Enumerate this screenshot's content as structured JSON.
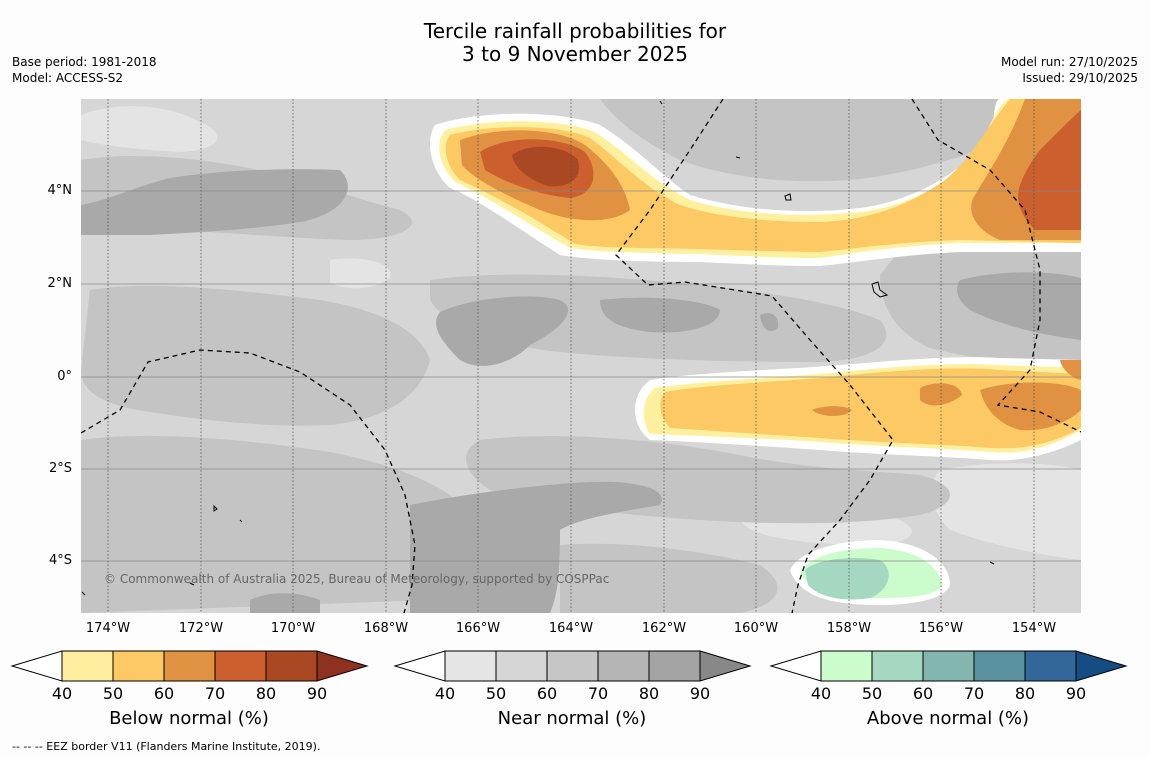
{
  "title": {
    "line1": "Tercile rainfall probabilities for",
    "line2": "3 to 9 November 2025"
  },
  "meta": {
    "base_period": "Base period: 1981-2018",
    "model": "Model: ACCESS-S2",
    "model_run": "Model run: 27/10/2025",
    "issued": "Issued: 29/10/2025"
  },
  "map": {
    "credit": "© Commonwealth of Australia 2025, Bureau of Meteorology, supported by COSPPac",
    "lat_labels": [
      "4°N",
      "2°N",
      "0°",
      "2°S",
      "4°S"
    ],
    "lon_labels": [
      "174°W",
      "172°W",
      "170°W",
      "168°W",
      "166°W",
      "164°W",
      "162°W",
      "160°W",
      "158°W",
      "156°W",
      "154°W"
    ]
  },
  "legend": {
    "ticks": [
      "40",
      "50",
      "60",
      "70",
      "80",
      "90"
    ],
    "below": {
      "title": "Below normal (%)",
      "colors": [
        "#ffee9f",
        "#fdc964",
        "#e09242",
        "#cb5f2e",
        "#ab4824",
        "#8f3120"
      ]
    },
    "near": {
      "title": "Near normal (%)",
      "colors": [
        "#e5e5e5",
        "#d6d6d6",
        "#c6c6c6",
        "#b4b4b4",
        "#a4a4a4",
        "#888888"
      ]
    },
    "above": {
      "title": "Above normal (%)",
      "colors": [
        "#ccfccc",
        "#a4d8c0",
        "#84b6b0",
        "#5a92a0",
        "#33679a",
        "#154c82"
      ]
    }
  },
  "footnote": "--  --  -- EEZ border V11 (Flanders Marine Institute, 2019)."
}
